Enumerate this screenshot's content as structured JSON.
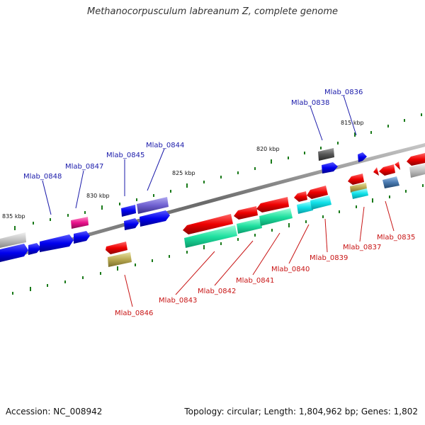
{
  "title": "Methanocorpusculum labreanum Z, complete genome",
  "footer": {
    "accession": "Accession: NC_008942",
    "topology": "Topology: circular; Length: 1,804,962 bp; Genes: 1,802"
  },
  "kbp_labels": [
    "835 kbp",
    "830 kbp",
    "825 kbp",
    "820 kbp",
    "815 kbp"
  ],
  "gene_labels_top": [
    "Mlab_0848",
    "Mlab_0847",
    "Mlab_0845",
    "Mlab_0844",
    "Mlab_0838",
    "Mlab_0836"
  ],
  "gene_labels_bottom": [
    "Mlab_0846",
    "Mlab_0843",
    "Mlab_0842",
    "Mlab_0841",
    "Mlab_0840",
    "Mlab_0839",
    "Mlab_0837",
    "Mlab_0835"
  ],
  "colors": {
    "forward_strand": "#0000ee",
    "reverse_strand": "#ee0000",
    "backbone": "#777777",
    "tick": "#1a7a1a",
    "label_top": "#1a1aaa",
    "label_bottom": "#c81414"
  }
}
